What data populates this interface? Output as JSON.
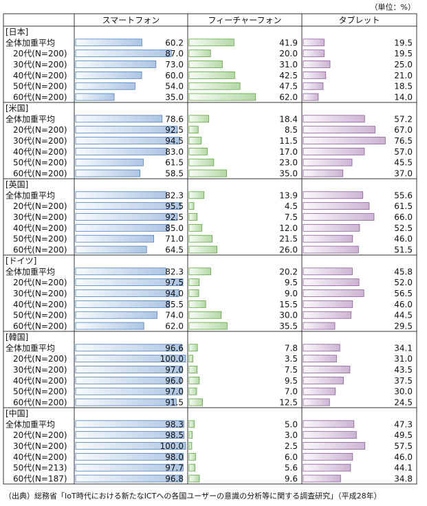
{
  "chart_data": {
    "type": "bar-table",
    "unit_note": "（単位：%）",
    "series": [
      {
        "name": "スマートフォン",
        "color": "#4a7fc1"
      },
      {
        "name": "フィーチャーフォン",
        "color": "#5aa83c"
      },
      {
        "name": "タブレット",
        "color": "#8e5a9e"
      }
    ],
    "xlim": [
      0,
      100
    ],
    "groups": [
      {
        "name": "[日本]",
        "rows": [
          {
            "label": "全体加重平均",
            "values": [
              60.2,
              41.9,
              19.5
            ],
            "value_labels": [
              "60.2",
              "41.9",
              "19.5"
            ]
          },
          {
            "label": "20代(N=200)",
            "values": [
              87.0,
              20.0,
              19.5
            ],
            "value_labels": [
              "87.0",
              "20.0",
              "19.5"
            ]
          },
          {
            "label": "30代(N=200)",
            "values": [
              73.0,
              31.0,
              25.0
            ],
            "value_labels": [
              "73.0",
              "31.0",
              "25.0"
            ]
          },
          {
            "label": "40代(N=200)",
            "values": [
              60.0,
              42.5,
              21.0
            ],
            "value_labels": [
              "60.0",
              "42.5",
              "21.0"
            ]
          },
          {
            "label": "50代(N=200)",
            "values": [
              54.0,
              47.5,
              18.5
            ],
            "value_labels": [
              "54.0",
              "47.5",
              "18.5"
            ]
          },
          {
            "label": "60代(N=200)",
            "values": [
              35.0,
              62.0,
              14.0
            ],
            "value_labels": [
              "35.0",
              "62.0",
              "14.0"
            ]
          }
        ]
      },
      {
        "name": "[米国]",
        "rows": [
          {
            "label": "全体加重平均",
            "values": [
              78.6,
              18.4,
              57.2
            ],
            "value_labels": [
              "78.6",
              "18.4",
              "57.2"
            ]
          },
          {
            "label": "20代(N=200)",
            "values": [
              92.5,
              8.5,
              67.0
            ],
            "value_labels": [
              "92.5",
              "8.5",
              "67.0"
            ]
          },
          {
            "label": "30代(N=200)",
            "values": [
              94.5,
              11.5,
              76.5
            ],
            "value_labels": [
              "94.5",
              "11.5",
              "76.5"
            ]
          },
          {
            "label": "40代(N=200)",
            "values": [
              83.0,
              17.0,
              57.0
            ],
            "value_labels": [
              "83.0",
              "17.0",
              "57.0"
            ]
          },
          {
            "label": "50代(N=200)",
            "values": [
              61.5,
              23.0,
              45.5
            ],
            "value_labels": [
              "61.5",
              "23.0",
              "45.5"
            ]
          },
          {
            "label": "60代(N=200)",
            "values": [
              58.5,
              35.0,
              37.0
            ],
            "value_labels": [
              "58.5",
              "35.0",
              "37.0"
            ]
          }
        ]
      },
      {
        "name": "[英国]",
        "rows": [
          {
            "label": "全体加重平均",
            "values": [
              82.3,
              13.9,
              55.6
            ],
            "value_labels": [
              "82.3",
              "13.9",
              "55.6"
            ]
          },
          {
            "label": "20代(N=200)",
            "values": [
              95.5,
              4.5,
              61.5
            ],
            "value_labels": [
              "95.5",
              "4.5",
              "61.5"
            ]
          },
          {
            "label": "30代(N=200)",
            "values": [
              92.5,
              7.5,
              66.0
            ],
            "value_labels": [
              "92.5",
              "7.5",
              "66.0"
            ]
          },
          {
            "label": "40代(N=200)",
            "values": [
              85.0,
              12.0,
              52.5
            ],
            "value_labels": [
              "85.0",
              "12.0",
              "52.5"
            ]
          },
          {
            "label": "50代(N=200)",
            "values": [
              71.0,
              21.5,
              46.0
            ],
            "value_labels": [
              "71.0",
              "21.5",
              "46.0"
            ]
          },
          {
            "label": "60代(N=200)",
            "values": [
              64.5,
              26.0,
              51.5
            ],
            "value_labels": [
              "64.5",
              "26.0",
              "51.5"
            ]
          }
        ]
      },
      {
        "name": "[ドイツ]",
        "rows": [
          {
            "label": "全体加重平均",
            "values": [
              82.3,
              20.2,
              45.8
            ],
            "value_labels": [
              "82.3",
              "20.2",
              "45.8"
            ]
          },
          {
            "label": "20代(N=200)",
            "values": [
              97.5,
              9.5,
              52.0
            ],
            "value_labels": [
              "97.5",
              "9.5",
              "52.0"
            ]
          },
          {
            "label": "30代(N=200)",
            "values": [
              94.0,
              9.0,
              56.5
            ],
            "value_labels": [
              "94.0",
              "9.0",
              "56.5"
            ]
          },
          {
            "label": "40代(N=200)",
            "values": [
              85.5,
              15.5,
              46.0
            ],
            "value_labels": [
              "85.5",
              "15.5",
              "46.0"
            ]
          },
          {
            "label": "50代(N=200)",
            "values": [
              74.0,
              30.0,
              44.5
            ],
            "value_labels": [
              "74.0",
              "30.0",
              "44.5"
            ]
          },
          {
            "label": "60代(N=200)",
            "values": [
              62.0,
              35.5,
              29.5
            ],
            "value_labels": [
              "62.0",
              "35.5",
              "29.5"
            ]
          }
        ]
      },
      {
        "name": "[韓国]",
        "rows": [
          {
            "label": "全体加重平均",
            "values": [
              96.6,
              7.8,
              34.1
            ],
            "value_labels": [
              "96.6",
              "7.8",
              "34.1"
            ]
          },
          {
            "label": "20代(N=200)",
            "values": [
              100.0,
              3.5,
              31.0
            ],
            "value_labels": [
              "100.0",
              "3.5",
              "31.0"
            ]
          },
          {
            "label": "30代(N=200)",
            "values": [
              97.0,
              7.5,
              43.5
            ],
            "value_labels": [
              "97.0",
              "7.5",
              "43.5"
            ]
          },
          {
            "label": "40代(N=200)",
            "values": [
              96.0,
              9.5,
              37.5
            ],
            "value_labels": [
              "96.0",
              "9.5",
              "37.5"
            ]
          },
          {
            "label": "50代(N=200)",
            "values": [
              97.0,
              7.0,
              30.0
            ],
            "value_labels": [
              "97.0",
              "7.0",
              "30.0"
            ]
          },
          {
            "label": "60代(N=200)",
            "values": [
              91.5,
              12.5,
              24.5
            ],
            "value_labels": [
              "91.5",
              "12.5",
              "24.5"
            ]
          }
        ]
      },
      {
        "name": "[中国]",
        "rows": [
          {
            "label": "全体加重平均",
            "values": [
              98.3,
              5.0,
              47.3
            ],
            "value_labels": [
              "98.3",
              "5.0",
              "47.3"
            ]
          },
          {
            "label": "20代(N=200)",
            "values": [
              98.5,
              3.0,
              49.5
            ],
            "value_labels": [
              "98.5",
              "3.0",
              "49.5"
            ]
          },
          {
            "label": "30代(N=200)",
            "values": [
              100.0,
              2.5,
              57.5
            ],
            "value_labels": [
              "100.0",
              "2.5",
              "57.5"
            ]
          },
          {
            "label": "40代(N=200)",
            "values": [
              98.0,
              6.0,
              46.0
            ],
            "value_labels": [
              "98.0",
              "6.0",
              "46.0"
            ]
          },
          {
            "label": "50代(N=213)",
            "values": [
              97.7,
              5.6,
              44.1
            ],
            "value_labels": [
              "97.7",
              "5.6",
              "44.1"
            ]
          },
          {
            "label": "60代(N=187)",
            "values": [
              96.8,
              9.6,
              34.8
            ],
            "value_labels": [
              "96.8",
              "9.6",
              "34.8"
            ]
          }
        ]
      }
    ],
    "source": "（出典）総務省「IoT時代における新たなICTへの各国ユーザーの意識の分析等に関する調査研究」（平成28年）"
  }
}
